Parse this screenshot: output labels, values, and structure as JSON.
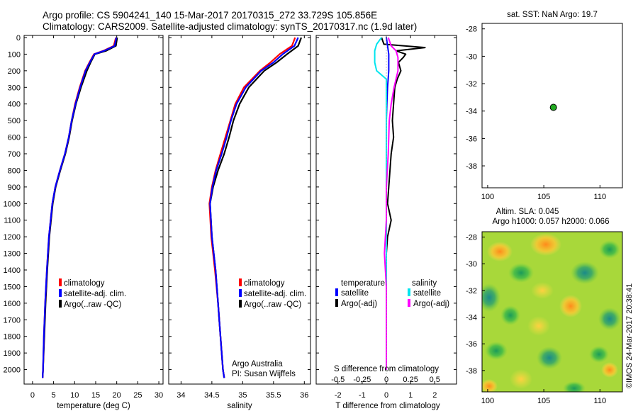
{
  "header": {
    "line1": "Argo profile: CS 5904241_140 15-Mar-2017 20170315_272 33.729S 105.856E",
    "line2": "Climatology: CARS2009. Satellite-adjusted climatology: synTS_20170317.nc (1.9d later)"
  },
  "colors": {
    "climatology": "#ff0000",
    "satellite_clim": "#0000ff",
    "argo": "#000000",
    "sal_satellite": "#00e5ee",
    "sal_argo": "#ff00ff",
    "sst_marker": "#22aa22"
  },
  "chart_data": [
    {
      "id": "temperature",
      "type": "line",
      "xlabel": "temperature (deg C)",
      "xlim": [
        -2,
        31
      ],
      "ylim": [
        2100,
        0
      ],
      "xticks": [
        0,
        5,
        10,
        15,
        20,
        25,
        30
      ],
      "yticks": [
        0,
        100,
        200,
        300,
        400,
        500,
        600,
        700,
        800,
        900,
        1000,
        1100,
        1200,
        1300,
        1400,
        1500,
        1600,
        1700,
        1800,
        1900,
        2000
      ],
      "legend": [
        "climatology",
        "satellite-adj. clim.",
        "Argo(..raw -QC)"
      ],
      "series": [
        {
          "name": "Argo(..raw -QC)",
          "color": "#000000",
          "depth": [
            0,
            50,
            80,
            100,
            150,
            200,
            300,
            400,
            500,
            600,
            700,
            800,
            900,
            1000,
            1200,
            1400,
            1600,
            1800,
            2000,
            2050
          ],
          "values": [
            20.1,
            19.8,
            17.5,
            14.8,
            13.8,
            12.9,
            11.5,
            10.3,
            9.4,
            8.7,
            7.8,
            6.6,
            5.5,
            4.8,
            4.0,
            3.5,
            3.1,
            2.8,
            2.5,
            2.4
          ]
        },
        {
          "name": "climatology",
          "color": "#ff0000",
          "depth": [
            0,
            50,
            80,
            100,
            150,
            200,
            300,
            400,
            500,
            600,
            700,
            800,
            900,
            1000,
            1200,
            1400,
            1600,
            1800,
            2000,
            2050
          ],
          "values": [
            19.8,
            19.3,
            16.8,
            14.6,
            13.5,
            12.5,
            11.2,
            10.1,
            9.3,
            8.6,
            7.7,
            6.5,
            5.4,
            4.7,
            3.9,
            3.4,
            3.0,
            2.7,
            2.5,
            2.4
          ]
        },
        {
          "name": "satellite-adj. clim.",
          "color": "#0000ff",
          "depth": [
            0,
            50,
            80,
            100,
            150,
            200,
            300,
            400,
            500,
            600,
            700,
            800,
            900,
            1000,
            1200,
            1400,
            1600,
            1800,
            2000,
            2050
          ],
          "values": [
            19.9,
            19.5,
            17.0,
            14.7,
            13.6,
            12.6,
            11.3,
            10.2,
            9.3,
            8.6,
            7.7,
            6.5,
            5.4,
            4.7,
            3.9,
            3.4,
            3.0,
            2.7,
            2.5,
            2.4
          ]
        }
      ]
    },
    {
      "id": "salinity",
      "type": "line",
      "xlabel": "salinity",
      "xlim": [
        33.8,
        36.1
      ],
      "ylim": [
        2100,
        0
      ],
      "xticks": [
        34,
        34.5,
        35,
        35.5,
        36
      ],
      "legend": [
        "climatology",
        "satellite-adj. clim.",
        "Argo(..raw -QC)"
      ],
      "series": [
        {
          "name": "Argo(..raw -QC)",
          "color": "#000000",
          "depth": [
            0,
            50,
            100,
            150,
            200,
            300,
            400,
            500,
            600,
            700,
            800,
            900,
            1000,
            1200,
            1400,
            1600,
            1800,
            2000,
            2050
          ],
          "values": [
            35.95,
            35.9,
            35.72,
            35.55,
            35.35,
            35.1,
            34.95,
            34.85,
            34.78,
            34.7,
            34.6,
            34.52,
            34.47,
            34.5,
            34.56,
            34.6,
            34.64,
            34.68,
            34.7
          ]
        },
        {
          "name": "climatology",
          "color": "#ff0000",
          "depth": [
            0,
            50,
            100,
            150,
            200,
            300,
            400,
            500,
            600,
            700,
            800,
            900,
            1000,
            1200,
            1400,
            1600,
            1800,
            2000,
            2050
          ],
          "values": [
            35.85,
            35.8,
            35.6,
            35.45,
            35.28,
            35.02,
            34.88,
            34.8,
            34.72,
            34.64,
            34.56,
            34.5,
            34.46,
            34.49,
            34.55,
            34.6,
            34.64,
            34.68,
            34.7
          ]
        },
        {
          "name": "satellite-adj. clim.",
          "color": "#0000ff",
          "depth": [
            0,
            50,
            100,
            150,
            200,
            300,
            400,
            500,
            600,
            700,
            800,
            900,
            1000,
            1200,
            1400,
            1600,
            1800,
            2000,
            2050
          ],
          "values": [
            35.9,
            35.84,
            35.65,
            35.5,
            35.3,
            35.05,
            34.9,
            34.81,
            34.74,
            34.66,
            34.57,
            34.51,
            34.47,
            34.5,
            34.56,
            34.6,
            34.64,
            34.68,
            34.7
          ]
        }
      ],
      "annotation": [
        "Argo Australia",
        "PI: Susan Wijffels"
      ]
    },
    {
      "id": "difference",
      "type": "line",
      "xlabel": "T difference from climatology",
      "xlabel_top": "S difference from climatology",
      "xlim": [
        -2.9,
        2.9
      ],
      "ylim": [
        2100,
        0
      ],
      "xticks": [
        -2,
        -1,
        0,
        1,
        2
      ],
      "top_ticks": [
        "-0.5",
        "-0.25",
        "0",
        "0.25",
        "0.5"
      ],
      "legend_headers": [
        "temperature",
        "salinity"
      ],
      "legend": [
        "satellite",
        "Argo(-adj)",
        "satellite",
        "Argo(-adj)"
      ],
      "series": [
        {
          "name": "temperature Argo(-adj)",
          "color": "#000000",
          "depth": [
            0,
            40,
            60,
            80,
            90,
            100,
            120,
            150,
            200,
            250,
            300,
            400,
            500,
            600,
            700,
            800,
            900,
            1000,
            1100,
            1200,
            1300,
            1500,
            2000
          ],
          "values": [
            -0.2,
            -0.1,
            1.6,
            0.4,
            0.6,
            0.8,
            0.7,
            0.5,
            0.6,
            0.45,
            0.35,
            0.3,
            0.25,
            0.3,
            0.2,
            0.15,
            0.1,
            0.05,
            0.2,
            0.05,
            0.0,
            0.0,
            0.0
          ]
        },
        {
          "name": "temperature satellite",
          "color": "#0000ff",
          "depth": [
            0,
            50,
            100,
            200,
            300,
            400,
            500,
            600,
            800,
            1000,
            1500,
            2000
          ],
          "values": [
            0.0,
            0.05,
            0.1,
            0.1,
            0.05,
            0.02,
            0.0,
            0.0,
            0.0,
            0.0,
            0.0,
            0.0
          ]
        },
        {
          "name": "salinity satellite",
          "color": "#00e5ee",
          "depth": [
            0,
            40,
            80,
            150,
            200,
            250,
            350,
            500,
            800,
            1000,
            1500,
            2000
          ],
          "values": [
            -0.05,
            -0.1,
            -0.12,
            -0.12,
            -0.1,
            0.0,
            0.0,
            0.0,
            0.0,
            0.0,
            0.0,
            0.0
          ]
        },
        {
          "name": "salinity Argo(-adj)",
          "color": "#ff00ff",
          "depth": [
            0,
            50,
            80,
            120,
            200,
            300,
            400,
            500,
            700,
            900,
            1100,
            1300,
            1500,
            2000
          ],
          "values": [
            0.02,
            0.05,
            0.1,
            0.12,
            0.12,
            0.08,
            0.05,
            0.03,
            0.02,
            0.0,
            0.0,
            -0.02,
            0.0,
            0.0
          ]
        }
      ]
    },
    {
      "id": "sst_map",
      "type": "scatter",
      "title": "sat. SST: NaN Argo: 19.7",
      "xlim": [
        99.5,
        112
      ],
      "ylim": [
        -39.6,
        -27.6
      ],
      "xticks": [
        100,
        105,
        110
      ],
      "yticks": [
        -28,
        -30,
        -32,
        -34,
        -36,
        -38
      ],
      "points": [
        {
          "x": 105.856,
          "y": -33.729
        }
      ]
    },
    {
      "id": "sla_map",
      "type": "heatmap",
      "title_line1": "Altim. SLA: 0.045",
      "title_line2": "Argo h1000: 0.057 h2000: 0.066",
      "xlim": [
        99.5,
        112
      ],
      "ylim": [
        -39.6,
        -27.6
      ],
      "xticks": [
        100,
        105,
        110
      ],
      "yticks": [
        -28,
        -30,
        -32,
        -34,
        -36,
        -38
      ]
    }
  ],
  "imos_stamp": "©IMOS 24-Mar-2017 20:38:41"
}
